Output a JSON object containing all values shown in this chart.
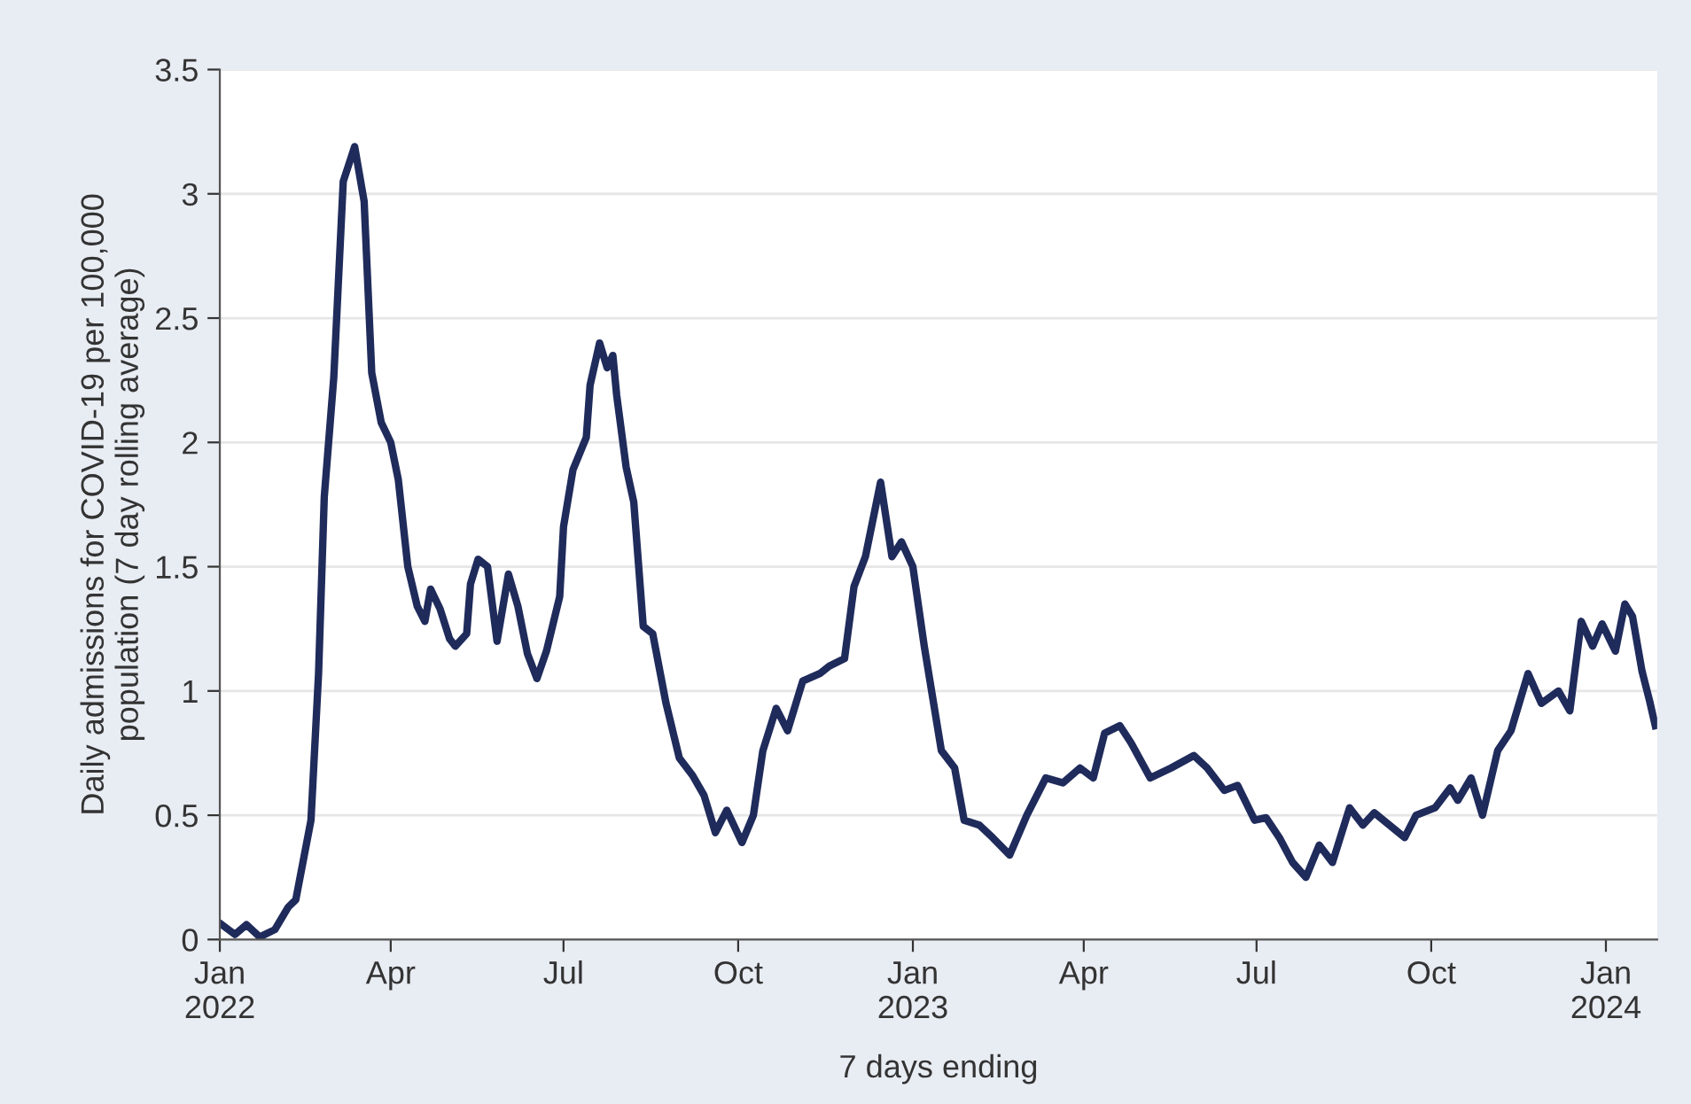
{
  "chart_data": {
    "type": "line",
    "xlabel": "7 days ending",
    "ylabel": "Daily admissions for COVID-19 per 100,000\npopulation (7 day rolling average)",
    "x": [
      "2022-01-02",
      "2022-01-09",
      "2022-01-15",
      "2022-01-22",
      "2022-01-30",
      "2022-02-06",
      "2022-02-10",
      "2022-02-18",
      "2022-02-22",
      "2022-02-25",
      "2022-03-02",
      "2022-03-07",
      "2022-03-13",
      "2022-03-18",
      "2022-03-22",
      "2022-03-27",
      "2022-04-01",
      "2022-04-05",
      "2022-04-10",
      "2022-04-15",
      "2022-04-19",
      "2022-04-22",
      "2022-04-27",
      "2022-05-02",
      "2022-05-05",
      "2022-05-11",
      "2022-05-13",
      "2022-05-17",
      "2022-05-22",
      "2022-05-27",
      "2022-06-02",
      "2022-06-07",
      "2022-06-12",
      "2022-06-17",
      "2022-06-22",
      "2022-06-29",
      "2022-07-01",
      "2022-07-06",
      "2022-07-13",
      "2022-07-15",
      "2022-07-20",
      "2022-07-24",
      "2022-07-27",
      "2022-07-29",
      "2022-08-03",
      "2022-08-07",
      "2022-08-12",
      "2022-08-17",
      "2022-08-24",
      "2022-08-31",
      "2022-09-07",
      "2022-09-13",
      "2022-09-19",
      "2022-09-25",
      "2022-10-03",
      "2022-10-09",
      "2022-10-14",
      "2022-10-21",
      "2022-10-27",
      "2022-11-04",
      "2022-11-13",
      "2022-11-18",
      "2022-11-26",
      "2022-12-01",
      "2022-12-07",
      "2022-12-15",
      "2022-12-21",
      "2022-12-26",
      "2023-01-01",
      "2023-01-07",
      "2023-01-16",
      "2023-01-23",
      "2023-01-28",
      "2023-02-05",
      "2023-02-12",
      "2023-02-21",
      "2023-03-02",
      "2023-03-12",
      "2023-03-21",
      "2023-03-30",
      "2023-04-06",
      "2023-04-12",
      "2023-04-20",
      "2023-04-26",
      "2023-05-06",
      "2023-05-17",
      "2023-05-29",
      "2023-06-05",
      "2023-06-14",
      "2023-06-21",
      "2023-06-30",
      "2023-07-06",
      "2023-07-13",
      "2023-07-20",
      "2023-07-27",
      "2023-08-03",
      "2023-08-10",
      "2023-08-19",
      "2023-08-26",
      "2023-09-01",
      "2023-09-09",
      "2023-09-17",
      "2023-09-23",
      "2023-10-03",
      "2023-10-11",
      "2023-10-15",
      "2023-10-22",
      "2023-10-28",
      "2023-11-05",
      "2023-11-12",
      "2023-11-21",
      "2023-11-28",
      "2023-12-07",
      "2023-12-13",
      "2023-12-19",
      "2023-12-25",
      "2023-12-30",
      "2024-01-06",
      "2024-01-11",
      "2024-01-15",
      "2024-01-20",
      "2024-01-24",
      "2024-01-27"
    ],
    "series": [
      {
        "color": "#1f2b5b",
        "values": [
          0.06,
          0.02,
          0.06,
          0.01,
          0.04,
          0.13,
          0.16,
          0.48,
          1.07,
          1.78,
          2.26,
          3.05,
          3.19,
          2.97,
          2.28,
          2.08,
          2.0,
          1.85,
          1.5,
          1.34,
          1.28,
          1.41,
          1.33,
          1.21,
          1.18,
          1.23,
          1.43,
          1.53,
          1.5,
          1.2,
          1.47,
          1.34,
          1.15,
          1.05,
          1.16,
          1.38,
          1.66,
          1.89,
          2.02,
          2.23,
          2.4,
          2.3,
          2.35,
          2.19,
          1.9,
          1.76,
          1.26,
          1.23,
          0.95,
          0.73,
          0.66,
          0.58,
          0.43,
          0.52,
          0.39,
          0.5,
          0.76,
          0.93,
          0.84,
          1.04,
          1.07,
          1.1,
          1.13,
          1.42,
          1.54,
          1.84,
          1.54,
          1.6,
          1.5,
          1.18,
          0.76,
          0.69,
          0.48,
          0.46,
          0.41,
          0.34,
          0.5,
          0.65,
          0.63,
          0.69,
          0.65,
          0.83,
          0.86,
          0.79,
          0.65,
          0.69,
          0.74,
          0.69,
          0.6,
          0.62,
          0.48,
          0.49,
          0.41,
          0.31,
          0.25,
          0.38,
          0.31,
          0.53,
          0.46,
          0.51,
          0.46,
          0.41,
          0.5,
          0.53,
          0.61,
          0.56,
          0.65,
          0.5,
          0.76,
          0.84,
          1.07,
          0.95,
          1.0,
          0.92,
          1.28,
          1.18,
          1.27,
          1.16,
          1.35,
          1.3,
          1.08,
          0.96,
          0.86
        ]
      }
    ],
    "xlim": [
      "2022-01-01",
      "2024-01-28"
    ],
    "xticks": [
      {
        "value": "2022-01-01",
        "label": "Jan\n2022"
      },
      {
        "value": "2022-04-01",
        "label": "Apr"
      },
      {
        "value": "2022-07-01",
        "label": "Jul"
      },
      {
        "value": "2022-10-01",
        "label": "Oct"
      },
      {
        "value": "2023-01-01",
        "label": "Jan\n2023"
      },
      {
        "value": "2023-04-01",
        "label": "Apr"
      },
      {
        "value": "2023-07-01",
        "label": "Jul"
      },
      {
        "value": "2023-10-01",
        "label": "Oct"
      },
      {
        "value": "2024-01-01",
        "label": "Jan\n2024"
      }
    ],
    "ylim": [
      0,
      3.5
    ],
    "yticks": [
      0,
      0.5,
      1,
      1.5,
      2,
      2.5,
      3,
      3.5
    ],
    "grid": "y",
    "legend": false,
    "marker": "none",
    "line_style": "solid"
  }
}
